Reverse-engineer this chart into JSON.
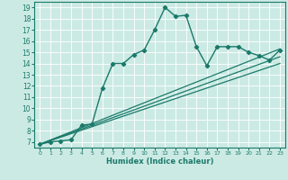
{
  "xlabel": "Humidex (Indice chaleur)",
  "bg_color": "#cceae4",
  "line_color": "#1a7a6a",
  "xlim": [
    -0.5,
    23.5
  ],
  "ylim": [
    6.5,
    19.5
  ],
  "xticks": [
    0,
    1,
    2,
    3,
    4,
    5,
    6,
    7,
    8,
    9,
    10,
    11,
    12,
    13,
    14,
    15,
    16,
    17,
    18,
    19,
    20,
    21,
    22,
    23
  ],
  "yticks": [
    7,
    8,
    9,
    10,
    11,
    12,
    13,
    14,
    15,
    16,
    17,
    18,
    19
  ],
  "main_line_x": [
    0,
    1,
    2,
    3,
    4,
    5,
    6,
    7,
    8,
    9,
    10,
    11,
    12,
    13,
    14,
    15,
    16,
    17,
    18,
    19,
    20,
    21,
    22,
    23
  ],
  "main_line_y": [
    6.8,
    7.0,
    7.1,
    7.2,
    8.5,
    8.6,
    11.8,
    14.0,
    14.0,
    14.8,
    15.2,
    17.0,
    19.0,
    18.2,
    18.3,
    15.5,
    13.8,
    15.5,
    15.5,
    15.5,
    15.0,
    14.7,
    14.3,
    15.2
  ],
  "ref_line1_x": [
    0,
    23
  ],
  "ref_line1_y": [
    6.8,
    15.3
  ],
  "ref_line2_x": [
    0,
    23
  ],
  "ref_line2_y": [
    6.8,
    14.6
  ],
  "ref_line3_x": [
    0,
    23
  ],
  "ref_line3_y": [
    6.8,
    14.0
  ]
}
